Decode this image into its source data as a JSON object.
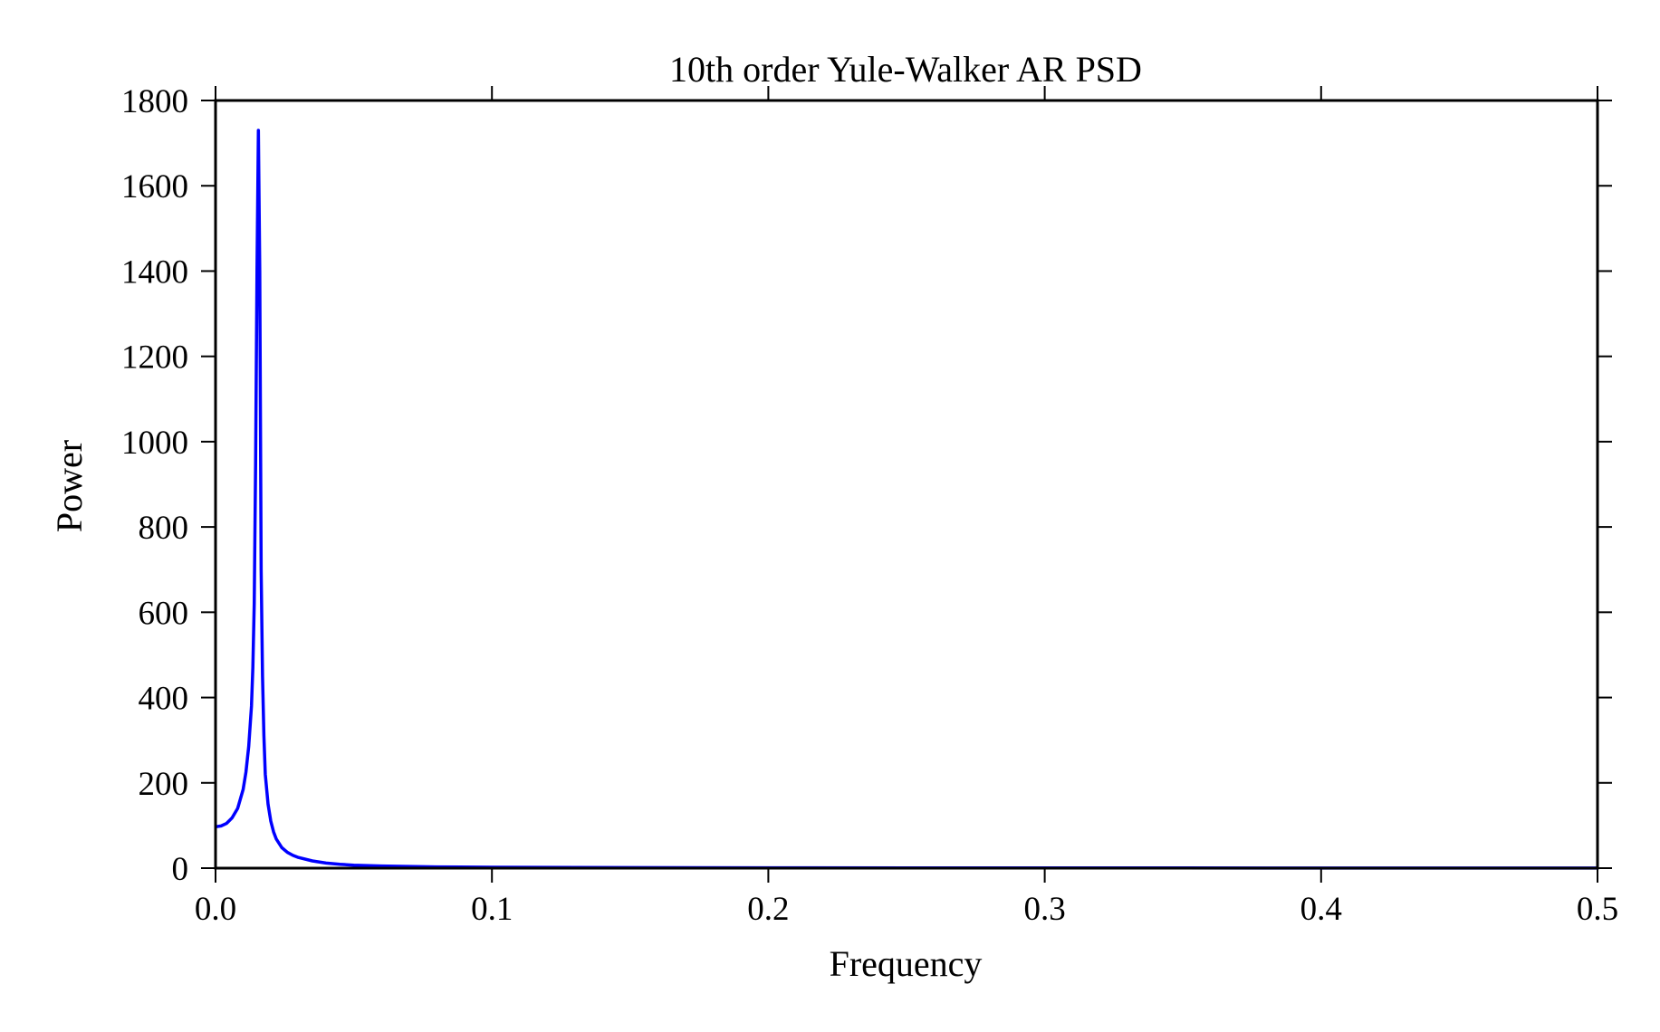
{
  "chart_data": {
    "type": "line",
    "title": "10th order Yule-Walker AR PSD",
    "xlabel": "Frequency",
    "ylabel": "Power",
    "xlim": [
      0.0,
      0.5
    ],
    "ylim": [
      0,
      1800
    ],
    "xticks": [
      0.0,
      0.1,
      0.2,
      0.3,
      0.4,
      0.5
    ],
    "xtick_labels": [
      "0.0",
      "0.1",
      "0.2",
      "0.3",
      "0.4",
      "0.5"
    ],
    "yticks": [
      0,
      200,
      400,
      600,
      800,
      1000,
      1200,
      1400,
      1600,
      1800
    ],
    "ytick_labels": [
      "0",
      "200",
      "400",
      "600",
      "800",
      "1000",
      "1200",
      "1400",
      "1600",
      "1800"
    ],
    "grid": false,
    "series": [
      {
        "color": "#0000ff",
        "x": [
          0.0,
          0.002,
          0.004,
          0.006,
          0.008,
          0.01,
          0.011,
          0.012,
          0.013,
          0.0135,
          0.014,
          0.0145,
          0.015,
          0.0155,
          0.016,
          0.0165,
          0.017,
          0.0175,
          0.018,
          0.019,
          0.02,
          0.021,
          0.022,
          0.024,
          0.026,
          0.028,
          0.03,
          0.035,
          0.04,
          0.045,
          0.05,
          0.06,
          0.07,
          0.08,
          0.1,
          0.15,
          0.2,
          0.25,
          0.3,
          0.35,
          0.4,
          0.45,
          0.5
        ],
        "y": [
          97,
          99,
          105,
          118,
          140,
          185,
          225,
          285,
          380,
          470,
          620,
          950,
          1400,
          1730,
          1400,
          700,
          450,
          310,
          220,
          150,
          110,
          85,
          68,
          48,
          37,
          30,
          25,
          17,
          12,
          9,
          7,
          5,
          4,
          3,
          2,
          1.2,
          0.8,
          0.6,
          0.5,
          0.4,
          0.35,
          0.3,
          0.3
        ]
      }
    ]
  }
}
